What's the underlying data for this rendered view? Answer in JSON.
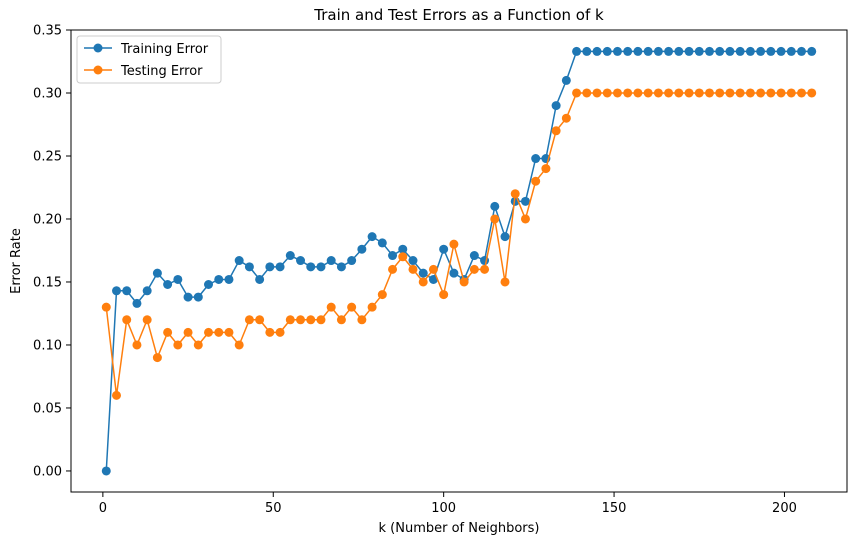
{
  "colors": {
    "training": "#1f77b4",
    "testing": "#ff7f0e",
    "axis": "#000000",
    "legend_border": "#cccccc"
  },
  "chart_data": {
    "type": "line",
    "title": "Train and Test Errors as a Function of k",
    "xlabel": "k (Number of Neighbors)",
    "ylabel": "Error Rate",
    "xlim": [
      -9.35,
      218.35
    ],
    "ylim": [
      -0.0167,
      0.35
    ],
    "xticks": [
      0,
      50,
      100,
      150,
      200
    ],
    "yticks": [
      0.0,
      0.05,
      0.1,
      0.15,
      0.2,
      0.25,
      0.3,
      0.35
    ],
    "ytick_labels": [
      "0.00",
      "0.05",
      "0.10",
      "0.15",
      "0.20",
      "0.25",
      "0.30",
      "0.35"
    ],
    "grid": false,
    "legend_position": "top-left",
    "x": [
      1,
      4,
      7,
      10,
      13,
      16,
      19,
      22,
      25,
      28,
      31,
      34,
      37,
      40,
      43,
      46,
      49,
      52,
      55,
      58,
      61,
      64,
      67,
      70,
      73,
      76,
      79,
      82,
      85,
      88,
      91,
      94,
      97,
      100,
      103,
      106,
      109,
      112,
      115,
      118,
      121,
      124,
      127,
      130,
      133,
      136,
      139,
      142,
      145,
      148,
      151,
      154,
      157,
      160,
      163,
      166,
      169,
      172,
      175,
      178,
      181,
      184,
      187,
      190,
      193,
      196,
      199,
      202,
      205,
      208
    ],
    "series": [
      {
        "name": "Training Error",
        "color": "#1f77b4",
        "values": [
          0.0,
          0.143,
          0.143,
          0.133,
          0.143,
          0.157,
          0.148,
          0.152,
          0.138,
          0.138,
          0.148,
          0.152,
          0.152,
          0.167,
          0.162,
          0.152,
          0.162,
          0.162,
          0.171,
          0.167,
          0.162,
          0.162,
          0.167,
          0.162,
          0.167,
          0.176,
          0.186,
          0.181,
          0.171,
          0.176,
          0.167,
          0.157,
          0.152,
          0.176,
          0.157,
          0.152,
          0.171,
          0.167,
          0.21,
          0.186,
          0.214,
          0.214,
          0.248,
          0.248,
          0.29,
          0.31,
          0.333,
          0.333,
          0.333,
          0.333,
          0.333,
          0.333,
          0.333,
          0.333,
          0.333,
          0.333,
          0.333,
          0.333,
          0.333,
          0.333,
          0.333,
          0.333,
          0.333,
          0.333,
          0.333,
          0.333,
          0.333,
          0.333,
          0.333,
          0.333
        ]
      },
      {
        "name": "Testing Error",
        "color": "#ff7f0e",
        "values": [
          0.13,
          0.06,
          0.12,
          0.1,
          0.12,
          0.09,
          0.11,
          0.1,
          0.11,
          0.1,
          0.11,
          0.11,
          0.11,
          0.1,
          0.12,
          0.12,
          0.11,
          0.11,
          0.12,
          0.12,
          0.12,
          0.12,
          0.13,
          0.12,
          0.13,
          0.12,
          0.13,
          0.14,
          0.16,
          0.17,
          0.16,
          0.15,
          0.16,
          0.14,
          0.18,
          0.15,
          0.16,
          0.16,
          0.2,
          0.15,
          0.22,
          0.2,
          0.23,
          0.24,
          0.27,
          0.28,
          0.3,
          0.3,
          0.3,
          0.3,
          0.3,
          0.3,
          0.3,
          0.3,
          0.3,
          0.3,
          0.3,
          0.3,
          0.3,
          0.3,
          0.3,
          0.3,
          0.3,
          0.3,
          0.3,
          0.3,
          0.3,
          0.3,
          0.3,
          0.3
        ]
      }
    ]
  }
}
